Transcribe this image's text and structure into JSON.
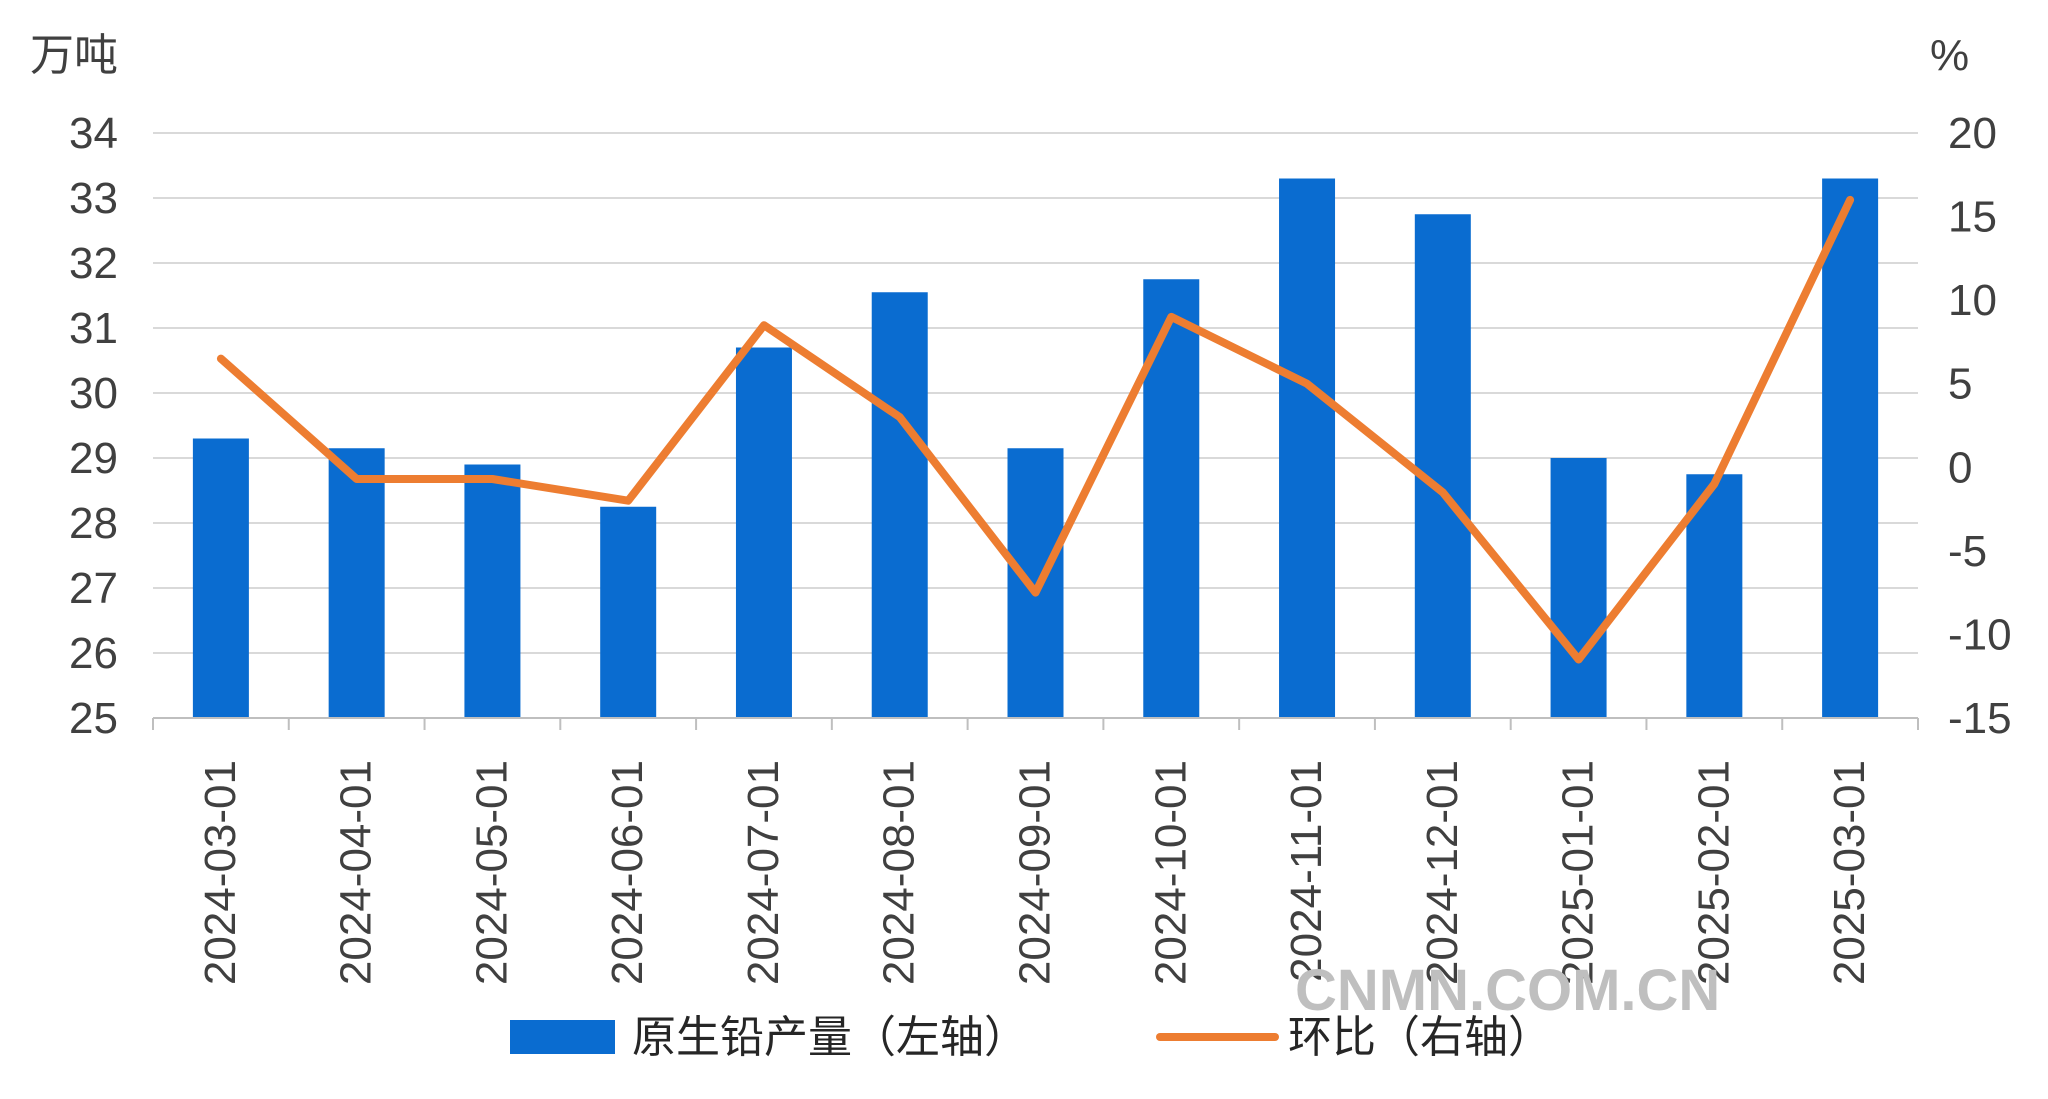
{
  "chart_data": {
    "type": "bar+line",
    "categories": [
      "2024-03-01",
      "2024-04-01",
      "2024-05-01",
      "2024-06-01",
      "2024-07-01",
      "2024-08-01",
      "2024-09-01",
      "2024-10-01",
      "2024-11-01",
      "2024-12-01",
      "2025-01-01",
      "2025-02-01",
      "2025-03-01"
    ],
    "series": [
      {
        "name": "原生铅产量（左轴）",
        "type": "bar",
        "axis": "left",
        "color": "#0a6cd0",
        "values": [
          29.3,
          29.15,
          28.9,
          28.25,
          30.7,
          31.55,
          29.15,
          31.75,
          33.3,
          32.75,
          29.0,
          28.75,
          33.3
        ]
      },
      {
        "name": "环比（右轴）",
        "type": "line",
        "axis": "right",
        "color": "#ed7d31",
        "values": [
          6.5,
          -0.7,
          -0.7,
          -2.0,
          8.5,
          3.0,
          -7.5,
          9.0,
          5.0,
          -1.5,
          -11.5,
          -1.0,
          16.0
        ]
      }
    ],
    "y_left": {
      "label": "万吨",
      "min": 25,
      "max": 34,
      "ticks": [
        25,
        26,
        27,
        28,
        29,
        30,
        31,
        32,
        33,
        34
      ]
    },
    "y_right": {
      "label": "%",
      "min": -15,
      "max": 20,
      "ticks": [
        -15,
        -10,
        -5,
        0,
        5,
        10,
        15,
        20
      ]
    },
    "grid": true,
    "legend_position": "bottom"
  },
  "watermark": "CNMN.COM.CN"
}
